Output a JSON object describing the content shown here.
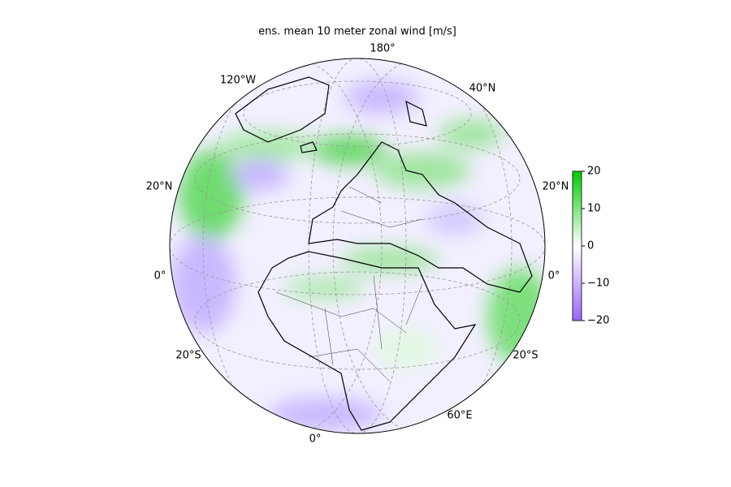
{
  "title": "ens. mean 10 meter zonal wind [m/s]",
  "graticule_labels": [
    "180°",
    "120°W",
    "40°N",
    "20°N",
    "20°N",
    "0°",
    "0°",
    "20°S",
    "20°S",
    "60°E",
    "0°"
  ],
  "colorbar": {
    "ylim": [
      -20,
      20
    ],
    "yticks": [
      {
        "value": -20,
        "label": "−20"
      },
      {
        "value": -10,
        "label": "−10"
      },
      0,
      10,
      20
    ],
    "colors": [
      "#9966ff",
      "#ffffff",
      "#00cc00"
    ]
  }
}
